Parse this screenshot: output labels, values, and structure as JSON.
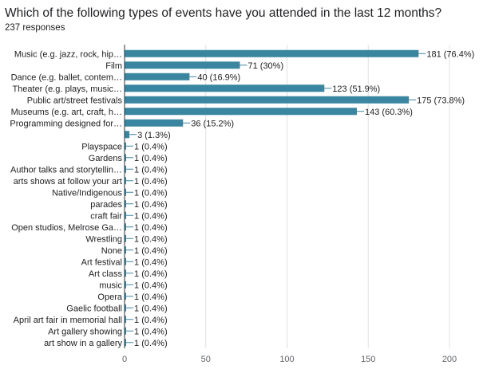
{
  "title": "Which of the following types of events have you attended in the last 12 months?",
  "subtitle": "237 responses",
  "colors": {
    "bar": "#3a86a0",
    "grid": "#e0e0e0",
    "axis": "#333333",
    "leader": "#3a86a0"
  },
  "chart_data": {
    "type": "bar",
    "orientation": "horizontal",
    "title": "Which of the following types of events have you attended in the last 12 months?",
    "xlim": [
      0,
      200
    ],
    "xticks": [
      0,
      50,
      100,
      150,
      200
    ],
    "grid": true,
    "categories": [
      "Music (e.g. jazz, rock, hip…",
      "Film",
      "Dance (e.g. ballet, contem…",
      "Theater (e.g. plays, music…",
      "Public art/street festivals",
      "Museums (e.g. art, craft, h…",
      "Programming designed for…",
      "",
      "Playspace",
      "Gardens",
      "Author talks and storytellin…",
      "arts shows at follow your art",
      "Native/Indigenous",
      "parades",
      "craft fair",
      "Open studios, Melrose Ga…",
      "Wrestling",
      "None",
      "Art festival",
      "Art class",
      "music",
      "Opera",
      "Gaelic football",
      "April art fair in memorial hall",
      "Art gallery showing",
      "art show in a gallery"
    ],
    "values": [
      181,
      71,
      40,
      123,
      175,
      143,
      36,
      3,
      1,
      1,
      1,
      1,
      1,
      1,
      1,
      1,
      1,
      1,
      1,
      1,
      1,
      1,
      1,
      1,
      1,
      1
    ],
    "labels": [
      "181 (76.4%)",
      "71 (30%)",
      "40 (16.9%)",
      "123 (51.9%)",
      "175 (73.8%)",
      "143 (60.3%)",
      "36 (15.2%)",
      "3 (1.3%)",
      "1 (0.4%)",
      "1 (0.4%)",
      "1 (0.4%)",
      "1 (0.4%)",
      "1 (0.4%)",
      "1 (0.4%)",
      "1 (0.4%)",
      "1 (0.4%)",
      "1 (0.4%)",
      "1 (0.4%)",
      "1 (0.4%)",
      "1 (0.4%)",
      "1 (0.4%)",
      "1 (0.4%)",
      "1 (0.4%)",
      "1 (0.4%)",
      "1 (0.4%)",
      "1 (0.4%)"
    ]
  }
}
